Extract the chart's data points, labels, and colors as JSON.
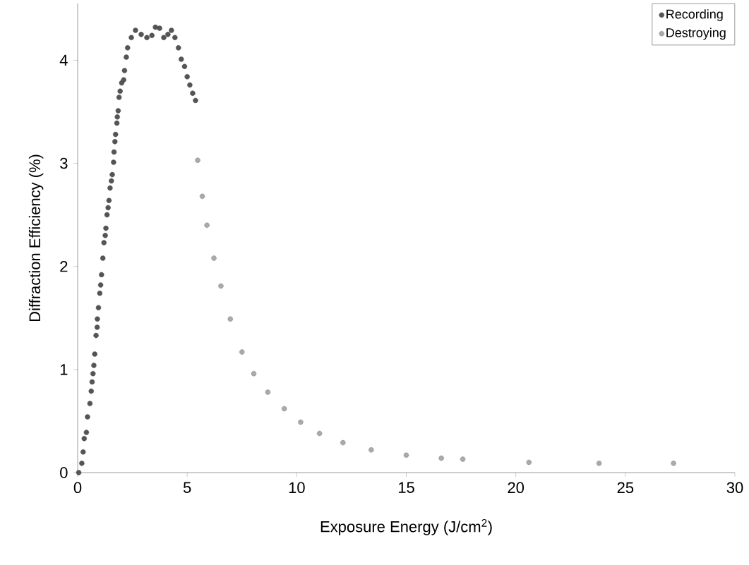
{
  "chart_data": {
    "type": "scatter",
    "xlabel": "Exposure Energy (J/cm$^{2}$)",
    "ylabel": "Diffraction Efficiency (%)",
    "xlim": [
      0,
      30
    ],
    "ylim": [
      0,
      4.55
    ],
    "xticks": [
      0,
      5,
      10,
      15,
      20,
      25,
      30
    ],
    "yticks": [
      0,
      1,
      2,
      3,
      4
    ],
    "grid": false,
    "legend": "top right",
    "marker": "circle",
    "series": [
      {
        "name": "Recording",
        "color": "#555555",
        "x": [
          0.05,
          0.19,
          0.25,
          0.3,
          0.4,
          0.45,
          0.56,
          0.62,
          0.66,
          0.7,
          0.74,
          0.78,
          0.84,
          0.89,
          0.9,
          0.95,
          1.01,
          1.05,
          1.09,
          1.15,
          1.2,
          1.26,
          1.29,
          1.34,
          1.39,
          1.43,
          1.48,
          1.54,
          1.58,
          1.64,
          1.66,
          1.7,
          1.73,
          1.79,
          1.81,
          1.85,
          1.89,
          1.94,
          2.01,
          2.1,
          2.14,
          2.22,
          2.28,
          2.45,
          2.64,
          2.9,
          3.16,
          3.39,
          3.55,
          3.74,
          3.93,
          4.12,
          4.28,
          4.44,
          4.6,
          4.73,
          4.88,
          5.0,
          5.12,
          5.25,
          5.38
        ],
        "values": [
          0,
          0.09,
          0.2,
          0.33,
          0.39,
          0.54,
          0.67,
          0.79,
          0.88,
          0.96,
          1.04,
          1.15,
          1.33,
          1.41,
          1.49,
          1.6,
          1.74,
          1.82,
          1.92,
          2.08,
          2.23,
          2.3,
          2.37,
          2.5,
          2.57,
          2.64,
          2.76,
          2.83,
          2.89,
          3.01,
          3.11,
          3.21,
          3.28,
          3.39,
          3.45,
          3.51,
          3.64,
          3.7,
          3.78,
          3.81,
          3.9,
          4.03,
          4.12,
          4.22,
          4.29,
          4.25,
          4.22,
          4.24,
          4.32,
          4.31,
          4.22,
          4.25,
          4.29,
          4.22,
          4.12,
          4.01,
          3.94,
          3.84,
          3.76,
          3.68,
          3.61
        ]
      },
      {
        "name": "Destroying",
        "color": "#aaaaaa",
        "x": [
          5.48,
          5.69,
          5.9,
          6.22,
          6.54,
          6.97,
          7.5,
          8.04,
          8.68,
          9.43,
          10.18,
          11.04,
          12.11,
          13.4,
          15.0,
          16.6,
          17.58,
          20.6,
          23.8,
          27.2
        ],
        "values": [
          3.03,
          2.68,
          2.4,
          2.08,
          1.81,
          1.49,
          1.17,
          0.96,
          0.78,
          0.62,
          0.49,
          0.38,
          0.29,
          0.22,
          0.17,
          0.14,
          0.13,
          0.1,
          0.09,
          0.09
        ]
      }
    ]
  }
}
